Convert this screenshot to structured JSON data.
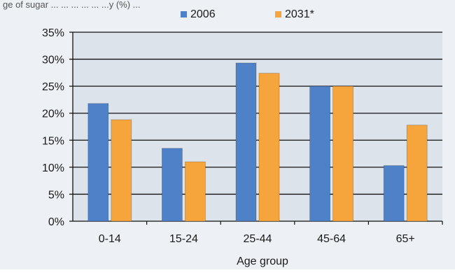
{
  "header_fragment": "ge of sugar ... ... ... ... ... ...y (%) ...",
  "chart_data": {
    "type": "bar",
    "categories": [
      "0-14",
      "15-24",
      "25-44",
      "45-64",
      "65+"
    ],
    "series": [
      {
        "name": "2006",
        "values": [
          21.8,
          13.5,
          29.3,
          25.0,
          10.3
        ],
        "color": "#4f81c8"
      },
      {
        "name": "2031*",
        "values": [
          18.8,
          11.0,
          27.4,
          25.0,
          17.8
        ],
        "color": "#f5a53b"
      }
    ],
    "xlabel": "Age group",
    "ylabel": "",
    "ylim": [
      0,
      35
    ],
    "yticks": [
      0,
      5,
      10,
      15,
      20,
      25,
      30,
      35
    ],
    "ytick_labels": [
      "0%",
      "5%",
      "10%",
      "15%",
      "20%",
      "25%",
      "30%",
      "35%"
    ],
    "grid": true,
    "legend_position": "top-center",
    "plot_background": "#dce3ea",
    "page_background": "#edf0f4"
  }
}
